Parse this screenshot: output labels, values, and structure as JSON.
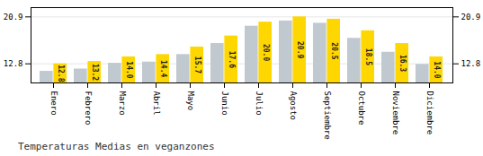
{
  "chart_data": {
    "type": "bar",
    "title": "Temperaturas Medias en veganzones",
    "categories": [
      "Enero",
      "Febrero",
      "Marzo",
      "Abril",
      "Mayo",
      "Junio",
      "Julio",
      "Agosto",
      "Septiembre",
      "Octubre",
      "Noviembre",
      "Diciembre"
    ],
    "series": [
      {
        "color": "#C0C8D0",
        "values": [
          11.5,
          11.9,
          12.9,
          13.1,
          14.4,
          16.3,
          19.3,
          20.2,
          19.8,
          17.2,
          14.8,
          12.7
        ]
      },
      {
        "color": "#FFD700",
        "values": [
          12.8,
          13.2,
          14.0,
          14.4,
          15.7,
          17.6,
          20.0,
          20.9,
          20.5,
          18.5,
          16.3,
          14.0
        ],
        "data_labels": true,
        "value_labels": [
          "12.8",
          "13.2",
          "14.0",
          "14.4",
          "15.7",
          "17.6",
          "20.0",
          "20.9",
          "20.5",
          "18.5",
          "16.3",
          "14.0"
        ]
      }
    ],
    "ylim": [
      9.5,
      22.5
    ],
    "yticks": [
      12.8,
      20.9
    ],
    "grid": true
  }
}
